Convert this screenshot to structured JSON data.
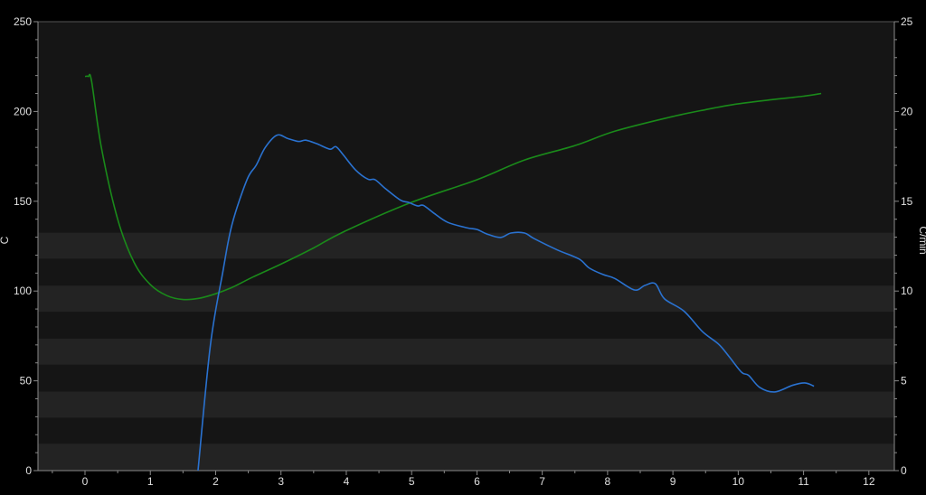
{
  "chart_data": {
    "type": "line",
    "title": "",
    "xlabel": "",
    "ylabel_left": "C",
    "ylabel_right": "C/min",
    "xlim": [
      -0.72,
      12.39
    ],
    "ylim_left": [
      0,
      250
    ],
    "ylim_right": [
      0,
      25
    ],
    "x_ticks": [
      0,
      1,
      2,
      3,
      4,
      5,
      6,
      7,
      8,
      9,
      10,
      11,
      12
    ],
    "left_ticks": [
      0,
      50,
      100,
      150,
      200,
      250
    ],
    "right_ticks": [
      0,
      5,
      10,
      15,
      20,
      25
    ],
    "grid": false,
    "legend": "none",
    "background_bands_left_axis": [
      [
        0,
        15
      ],
      [
        29.5,
        44
      ],
      [
        59,
        73.5
      ],
      [
        88.5,
        103
      ],
      [
        118,
        132.5
      ]
    ],
    "colors": {
      "background": "#000000",
      "plot": "#151515",
      "band": "#232323",
      "axis": "#8a8a8a",
      "temperature": "#1a8a1a",
      "rate": "#2a72d0"
    },
    "series": [
      {
        "axis": "left",
        "color": "#1a8a1a",
        "x": [
          0,
          0.05,
          0.1,
          0.25,
          0.5,
          0.75,
          1,
          1.25,
          1.5,
          1.75,
          2,
          2.25,
          2.57,
          3,
          3.5,
          3.96,
          4.97,
          6,
          6.73,
          7.5,
          8.11,
          8.94,
          9.5,
          9.95,
          10.5,
          11,
          11.27
        ],
        "y": [
          219.5,
          219.5,
          217,
          180,
          140,
          116,
          103.6,
          97.5,
          95.3,
          96,
          98.5,
          102,
          107.8,
          115,
          124,
          133,
          149,
          162,
          173,
          181,
          189,
          196.7,
          201,
          204,
          206.5,
          208.5,
          210
        ]
      },
      {
        "axis": "right",
        "color": "#2a72d0",
        "x": [
          1.73,
          1.92,
          2.11,
          2.25,
          2.48,
          2.62,
          2.76,
          2.94,
          3.1,
          3.27,
          3.38,
          3.55,
          3.75,
          3.84,
          3.95,
          4.14,
          4.33,
          4.44,
          4.6,
          4.83,
          4.95,
          5.09,
          5.18,
          5.34,
          5.55,
          5.85,
          6.0,
          6.15,
          6.36,
          6.52,
          6.73,
          6.87,
          7.23,
          7.56,
          7.72,
          7.93,
          8.11,
          8.41,
          8.57,
          8.73,
          8.87,
          9.17,
          9.45,
          9.7,
          9.86,
          10.05,
          10.16,
          10.33,
          10.56,
          10.83,
          11.02,
          11.16
        ],
        "y": [
          0,
          7.0,
          11.07,
          13.7,
          16.2,
          17.0,
          18.0,
          18.68,
          18.5,
          18.33,
          18.4,
          18.2,
          17.9,
          18.04,
          17.6,
          16.75,
          16.23,
          16.2,
          15.7,
          15.06,
          14.94,
          14.74,
          14.77,
          14.34,
          13.83,
          13.52,
          13.43,
          13.18,
          12.98,
          13.23,
          13.23,
          12.93,
          12.29,
          11.79,
          11.28,
          10.92,
          10.7,
          10.06,
          10.31,
          10.41,
          9.57,
          8.88,
          7.75,
          7.04,
          6.35,
          5.48,
          5.3,
          4.63,
          4.38,
          4.75,
          4.88,
          4.7
        ]
      }
    ]
  }
}
